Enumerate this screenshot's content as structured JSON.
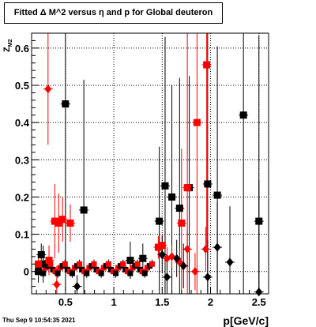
{
  "title": "Fitted Δ M^2 versus η and p for Global deuteron",
  "timestamp": "Thu Sep  9 10:54:35 2021",
  "chart_data": {
    "type": "scatter",
    "title": "Fitted Δ M^2 versus η and p for Global deuteron",
    "xlabel": "p[GeV/c]",
    "ylabel": "Z_{M2}",
    "xlim": [
      0.15,
      2.6
    ],
    "ylim": [
      -0.06,
      0.64
    ],
    "xticks": [
      0.5,
      1,
      1.5,
      2,
      2.5
    ],
    "xtick_labels": [
      "0.5",
      "1",
      "1.5",
      "2",
      "2.5"
    ],
    "yticks": [
      0,
      0.1,
      0.2,
      0.3,
      0.4,
      0.5,
      0.6
    ],
    "ytick_labels": [
      "0",
      "0.1",
      "0.2",
      "0.3",
      "0.4",
      "0.5",
      "0.6"
    ],
    "grid": true,
    "legend": "none",
    "colors": {
      "black": "#000000",
      "red": "#ff0000"
    },
    "series": [
      {
        "marker": "square",
        "color": "#000000",
        "points": [
          {
            "x": 0.22,
            "y": 0.0,
            "yerr": 0.03
          },
          {
            "x": 0.25,
            "y": 0.045,
            "yerr": 0.03
          },
          {
            "x": 0.27,
            "y": 0.02,
            "yerr": 0.05
          },
          {
            "x": 0.5,
            "y": 0.45,
            "yerr": 0.5
          },
          {
            "x": 0.69,
            "y": 0.165,
            "yerr": 0.35
          },
          {
            "x": 1.17,
            "y": 0.03,
            "yerr": 0.05
          },
          {
            "x": 1.3,
            "y": 0.035,
            "yerr": 0.04
          },
          {
            "x": 1.47,
            "y": 0.135,
            "yerr": 0.2
          },
          {
            "x": 1.53,
            "y": 0.23,
            "yerr": 0.4
          },
          {
            "x": 1.6,
            "y": 0.2,
            "yerr": 0.3
          },
          {
            "x": 1.68,
            "y": 0.17,
            "yerr": 0.35
          },
          {
            "x": 1.78,
            "y": 0.225,
            "yerr": 0.3
          },
          {
            "x": 1.97,
            "y": 0.235,
            "yerr": 0.5
          },
          {
            "x": 2.07,
            "y": 0.205,
            "yerr": 0.4
          },
          {
            "x": 2.34,
            "y": 0.42,
            "yerr": 0.5
          },
          {
            "x": 2.5,
            "y": 0.135,
            "yerr": 0.5
          }
        ]
      },
      {
        "marker": "square",
        "color": "#ff0000",
        "points": [
          {
            "x": 0.22,
            "y": 0.02,
            "yerr": 0.03
          },
          {
            "x": 0.33,
            "y": 0.03,
            "yerr": 0.04
          },
          {
            "x": 0.39,
            "y": 0.135,
            "yerr": 0.1
          },
          {
            "x": 0.43,
            "y": 0.13,
            "yerr": 0.08
          },
          {
            "x": 0.47,
            "y": 0.14,
            "yerr": 0.06
          },
          {
            "x": 0.55,
            "y": 0.13,
            "yerr": 0.05
          },
          {
            "x": 1.46,
            "y": 0.065,
            "yerr": 0.03
          },
          {
            "x": 1.5,
            "y": 0.07,
            "yerr": 0.03
          },
          {
            "x": 1.7,
            "y": 0.13,
            "yerr": 0.2
          },
          {
            "x": 1.76,
            "y": 0.225,
            "yerr": 0.5
          },
          {
            "x": 1.86,
            "y": 0.4,
            "yerr": 0.5
          },
          {
            "x": 1.96,
            "y": 0.555,
            "yerr": 0.5
          }
        ]
      },
      {
        "marker": "diamond",
        "color": "#ff0000",
        "points": [
          {
            "x": 0.32,
            "y": 0.49,
            "yerr": 0.15
          },
          {
            "x": 0.41,
            "y": -0.035,
            "yerr": 0.05
          },
          {
            "x": 1.55,
            "y": 0.035,
            "yerr": 0.03
          },
          {
            "x": 1.6,
            "y": 0.04,
            "yerr": 0.03
          },
          {
            "x": 1.68,
            "y": 0.025,
            "yerr": 0.04
          },
          {
            "x": 1.76,
            "y": 0.06,
            "yerr": 0.05
          },
          {
            "x": 1.84,
            "y": 0.0,
            "yerr": 0.05
          },
          {
            "x": 1.95,
            "y": 0.06,
            "yerr": 0.06
          }
        ]
      },
      {
        "marker": "diamond",
        "color": "#000000",
        "points": [
          {
            "x": 0.62,
            "y": -0.04,
            "yerr": 0.03
          },
          {
            "x": 1.5,
            "y": 0.045,
            "yerr": 0.05
          },
          {
            "x": 1.55,
            "y": -0.015,
            "yerr": 0.05
          },
          {
            "x": 1.65,
            "y": 0.035,
            "yerr": 0.05
          },
          {
            "x": 1.72,
            "y": 0.015,
            "yerr": 0.06
          },
          {
            "x": 1.97,
            "y": -0.015,
            "yerr": 0.1
          },
          {
            "x": 2.07,
            "y": 0.065,
            "yerr": 0.12
          },
          {
            "x": 2.2,
            "y": 0.025,
            "yerr": 0.15
          },
          {
            "x": 2.5,
            "y": -0.055,
            "yerr": 0.3
          }
        ]
      }
    ],
    "bulk_band": {
      "x_from": 0.22,
      "x_to": 1.4,
      "y_values": [
        0.005,
        0.0,
        -0.005,
        0.01,
        0.015,
        0.02
      ]
    }
  }
}
